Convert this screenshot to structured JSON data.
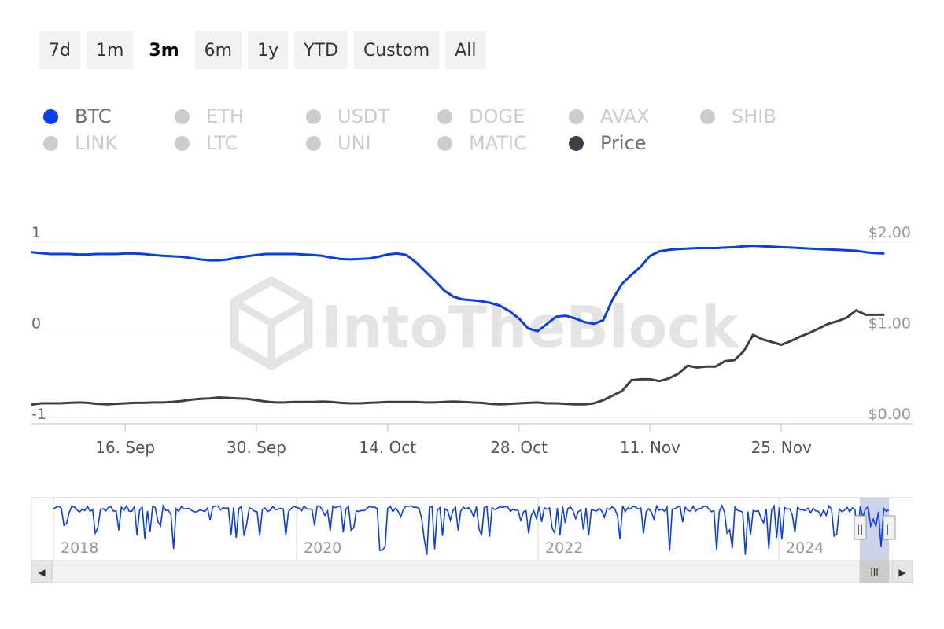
{
  "range_buttons": [
    {
      "label": "7d",
      "active": false
    },
    {
      "label": "1m",
      "active": false
    },
    {
      "label": "3m",
      "active": true
    },
    {
      "label": "6m",
      "active": false
    },
    {
      "label": "1y",
      "active": false
    },
    {
      "label": "YTD",
      "active": false
    },
    {
      "label": "Custom",
      "active": false
    },
    {
      "label": "All",
      "active": false
    }
  ],
  "legend": [
    {
      "label": "BTC",
      "active": true,
      "color": "#0a3cf0"
    },
    {
      "label": "ETH",
      "active": false
    },
    {
      "label": "USDT",
      "active": false
    },
    {
      "label": "DOGE",
      "active": false
    },
    {
      "label": "AVAX",
      "active": false
    },
    {
      "label": "SHIB",
      "active": false
    },
    {
      "label": "LINK",
      "active": false
    },
    {
      "label": "LTC",
      "active": false
    },
    {
      "label": "UNI",
      "active": false
    },
    {
      "label": "MATIC",
      "active": false
    },
    {
      "label": "Price",
      "active": true,
      "color": "#3c4046"
    }
  ],
  "watermark": "IntoTheBlock",
  "chart_data": {
    "type": "line",
    "x_range": [
      "2024-09-06",
      "2024-12-09"
    ],
    "x_ticks": [
      "16. Sep",
      "30. Sep",
      "14. Oct",
      "28. Oct",
      "11. Nov",
      "25. Nov"
    ],
    "y_left": {
      "min": -1,
      "max": 1,
      "ticks": [
        "1",
        "0",
        "-1"
      ]
    },
    "y_right": {
      "min": 0,
      "max": 2,
      "ticks": [
        "$2.00",
        "$1.00",
        "$0.00"
      ]
    },
    "grid": true,
    "series": [
      {
        "name": "BTC",
        "axis": "left",
        "color": "#0a3cf0",
        "points": [
          [
            "2024-09-06",
            0.89
          ],
          [
            "2024-09-07",
            0.88
          ],
          [
            "2024-09-08",
            0.87
          ],
          [
            "2024-09-09",
            0.87
          ],
          [
            "2024-09-10",
            0.87
          ],
          [
            "2024-09-11",
            0.865
          ],
          [
            "2024-09-12",
            0.865
          ],
          [
            "2024-09-13",
            0.87
          ],
          [
            "2024-09-14",
            0.87
          ],
          [
            "2024-09-15",
            0.87
          ],
          [
            "2024-09-16",
            0.875
          ],
          [
            "2024-09-17",
            0.875
          ],
          [
            "2024-09-18",
            0.87
          ],
          [
            "2024-09-19",
            0.86
          ],
          [
            "2024-09-20",
            0.85
          ],
          [
            "2024-09-21",
            0.845
          ],
          [
            "2024-09-22",
            0.84
          ],
          [
            "2024-09-23",
            0.825
          ],
          [
            "2024-09-24",
            0.81
          ],
          [
            "2024-09-25",
            0.8
          ],
          [
            "2024-09-26",
            0.8
          ],
          [
            "2024-09-27",
            0.81
          ],
          [
            "2024-09-28",
            0.83
          ],
          [
            "2024-09-29",
            0.845
          ],
          [
            "2024-09-30",
            0.86
          ],
          [
            "2024-10-01",
            0.87
          ],
          [
            "2024-10-02",
            0.87
          ],
          [
            "2024-10-03",
            0.87
          ],
          [
            "2024-10-04",
            0.87
          ],
          [
            "2024-10-05",
            0.865
          ],
          [
            "2024-10-06",
            0.86
          ],
          [
            "2024-10-07",
            0.85
          ],
          [
            "2024-10-08",
            0.83
          ],
          [
            "2024-10-09",
            0.815
          ],
          [
            "2024-10-10",
            0.81
          ],
          [
            "2024-10-11",
            0.815
          ],
          [
            "2024-10-12",
            0.82
          ],
          [
            "2024-10-13",
            0.84
          ],
          [
            "2024-10-14",
            0.865
          ],
          [
            "2024-10-15",
            0.875
          ],
          [
            "2024-10-16",
            0.86
          ],
          [
            "2024-10-17",
            0.78
          ],
          [
            "2024-10-18",
            0.68
          ],
          [
            "2024-10-19",
            0.58
          ],
          [
            "2024-10-20",
            0.47
          ],
          [
            "2024-10-21",
            0.4
          ],
          [
            "2024-10-22",
            0.37
          ],
          [
            "2024-10-23",
            0.36
          ],
          [
            "2024-10-24",
            0.35
          ],
          [
            "2024-10-25",
            0.33
          ],
          [
            "2024-10-26",
            0.3
          ],
          [
            "2024-10-27",
            0.24
          ],
          [
            "2024-10-28",
            0.16
          ],
          [
            "2024-10-29",
            0.05
          ],
          [
            "2024-10-30",
            0.02
          ],
          [
            "2024-10-31",
            0.1
          ],
          [
            "2024-11-01",
            0.18
          ],
          [
            "2024-11-02",
            0.19
          ],
          [
            "2024-11-03",
            0.16
          ],
          [
            "2024-11-04",
            0.12
          ],
          [
            "2024-11-05",
            0.1
          ],
          [
            "2024-11-06",
            0.14
          ],
          [
            "2024-11-07",
            0.37
          ],
          [
            "2024-11-08",
            0.54
          ],
          [
            "2024-11-09",
            0.64
          ],
          [
            "2024-11-10",
            0.73
          ],
          [
            "2024-11-11",
            0.85
          ],
          [
            "2024-11-12",
            0.9
          ],
          [
            "2024-11-13",
            0.915
          ],
          [
            "2024-11-14",
            0.925
          ],
          [
            "2024-11-15",
            0.93
          ],
          [
            "2024-11-16",
            0.935
          ],
          [
            "2024-11-17",
            0.935
          ],
          [
            "2024-11-18",
            0.935
          ],
          [
            "2024-11-19",
            0.94
          ],
          [
            "2024-11-20",
            0.945
          ],
          [
            "2024-11-21",
            0.955
          ],
          [
            "2024-11-22",
            0.96
          ],
          [
            "2024-11-23",
            0.955
          ],
          [
            "2024-11-24",
            0.95
          ],
          [
            "2024-11-25",
            0.945
          ],
          [
            "2024-11-26",
            0.94
          ],
          [
            "2024-11-27",
            0.935
          ],
          [
            "2024-11-28",
            0.93
          ],
          [
            "2024-11-29",
            0.925
          ],
          [
            "2024-11-30",
            0.92
          ],
          [
            "2024-12-01",
            0.915
          ],
          [
            "2024-12-02",
            0.91
          ],
          [
            "2024-12-03",
            0.905
          ],
          [
            "2024-12-04",
            0.89
          ],
          [
            "2024-12-05",
            0.88
          ],
          [
            "2024-12-06",
            0.875
          ]
        ]
      },
      {
        "name": "Price",
        "axis": "right",
        "color": "#3c4046",
        "points": [
          [
            "2024-09-06",
            0.21
          ],
          [
            "2024-09-07",
            0.225
          ],
          [
            "2024-09-08",
            0.225
          ],
          [
            "2024-09-09",
            0.225
          ],
          [
            "2024-09-10",
            0.23
          ],
          [
            "2024-09-11",
            0.235
          ],
          [
            "2024-09-12",
            0.23
          ],
          [
            "2024-09-13",
            0.22
          ],
          [
            "2024-09-14",
            0.215
          ],
          [
            "2024-09-15",
            0.22
          ],
          [
            "2024-09-16",
            0.225
          ],
          [
            "2024-09-17",
            0.23
          ],
          [
            "2024-09-18",
            0.23
          ],
          [
            "2024-09-19",
            0.235
          ],
          [
            "2024-09-20",
            0.235
          ],
          [
            "2024-09-21",
            0.24
          ],
          [
            "2024-09-22",
            0.25
          ],
          [
            "2024-09-23",
            0.265
          ],
          [
            "2024-09-24",
            0.275
          ],
          [
            "2024-09-25",
            0.28
          ],
          [
            "2024-09-26",
            0.29
          ],
          [
            "2024-09-27",
            0.285
          ],
          [
            "2024-09-28",
            0.28
          ],
          [
            "2024-09-29",
            0.275
          ],
          [
            "2024-09-30",
            0.26
          ],
          [
            "2024-10-01",
            0.245
          ],
          [
            "2024-10-02",
            0.235
          ],
          [
            "2024-10-03",
            0.235
          ],
          [
            "2024-10-04",
            0.24
          ],
          [
            "2024-10-05",
            0.24
          ],
          [
            "2024-10-06",
            0.24
          ],
          [
            "2024-10-07",
            0.245
          ],
          [
            "2024-10-08",
            0.24
          ],
          [
            "2024-10-09",
            0.23
          ],
          [
            "2024-10-10",
            0.225
          ],
          [
            "2024-10-11",
            0.225
          ],
          [
            "2024-10-12",
            0.23
          ],
          [
            "2024-10-13",
            0.235
          ],
          [
            "2024-10-14",
            0.24
          ],
          [
            "2024-10-15",
            0.24
          ],
          [
            "2024-10-16",
            0.24
          ],
          [
            "2024-10-17",
            0.24
          ],
          [
            "2024-10-18",
            0.235
          ],
          [
            "2024-10-19",
            0.235
          ],
          [
            "2024-10-20",
            0.24
          ],
          [
            "2024-10-21",
            0.245
          ],
          [
            "2024-10-22",
            0.24
          ],
          [
            "2024-10-23",
            0.235
          ],
          [
            "2024-10-24",
            0.23
          ],
          [
            "2024-10-25",
            0.22
          ],
          [
            "2024-10-26",
            0.215
          ],
          [
            "2024-10-27",
            0.22
          ],
          [
            "2024-10-28",
            0.225
          ],
          [
            "2024-10-29",
            0.23
          ],
          [
            "2024-10-30",
            0.235
          ],
          [
            "2024-10-31",
            0.225
          ],
          [
            "2024-11-01",
            0.225
          ],
          [
            "2024-11-02",
            0.22
          ],
          [
            "2024-11-03",
            0.215
          ],
          [
            "2024-11-04",
            0.215
          ],
          [
            "2024-11-05",
            0.225
          ],
          [
            "2024-11-06",
            0.26
          ],
          [
            "2024-11-07",
            0.31
          ],
          [
            "2024-11-08",
            0.36
          ],
          [
            "2024-11-09",
            0.48
          ],
          [
            "2024-11-10",
            0.49
          ],
          [
            "2024-11-11",
            0.49
          ],
          [
            "2024-11-12",
            0.47
          ],
          [
            "2024-11-13",
            0.5
          ],
          [
            "2024-11-14",
            0.55
          ],
          [
            "2024-11-15",
            0.64
          ],
          [
            "2024-11-16",
            0.62
          ],
          [
            "2024-11-17",
            0.63
          ],
          [
            "2024-11-18",
            0.63
          ],
          [
            "2024-11-19",
            0.69
          ],
          [
            "2024-11-20",
            0.7
          ],
          [
            "2024-11-21",
            0.8
          ],
          [
            "2024-11-22",
            0.98
          ],
          [
            "2024-11-23",
            0.93
          ],
          [
            "2024-11-24",
            0.9
          ],
          [
            "2024-11-25",
            0.87
          ],
          [
            "2024-11-26",
            0.91
          ],
          [
            "2024-11-27",
            0.96
          ],
          [
            "2024-11-28",
            1.0
          ],
          [
            "2024-11-29",
            1.05
          ],
          [
            "2024-11-30",
            1.1
          ],
          [
            "2024-12-01",
            1.13
          ],
          [
            "2024-12-02",
            1.17
          ],
          [
            "2024-12-03",
            1.25
          ],
          [
            "2024-12-04",
            1.2
          ],
          [
            "2024-12-05",
            1.2
          ],
          [
            "2024-12-06",
            1.2
          ]
        ]
      }
    ]
  },
  "navigator": {
    "year_labels": [
      "2018",
      "2020",
      "2022",
      "2024"
    ],
    "handle_glyph": "||",
    "scroll_left_glyph": "◀",
    "scroll_right_glyph": "▶",
    "scroll_grip_glyph": "III",
    "series_color": "#0a3cf0"
  }
}
